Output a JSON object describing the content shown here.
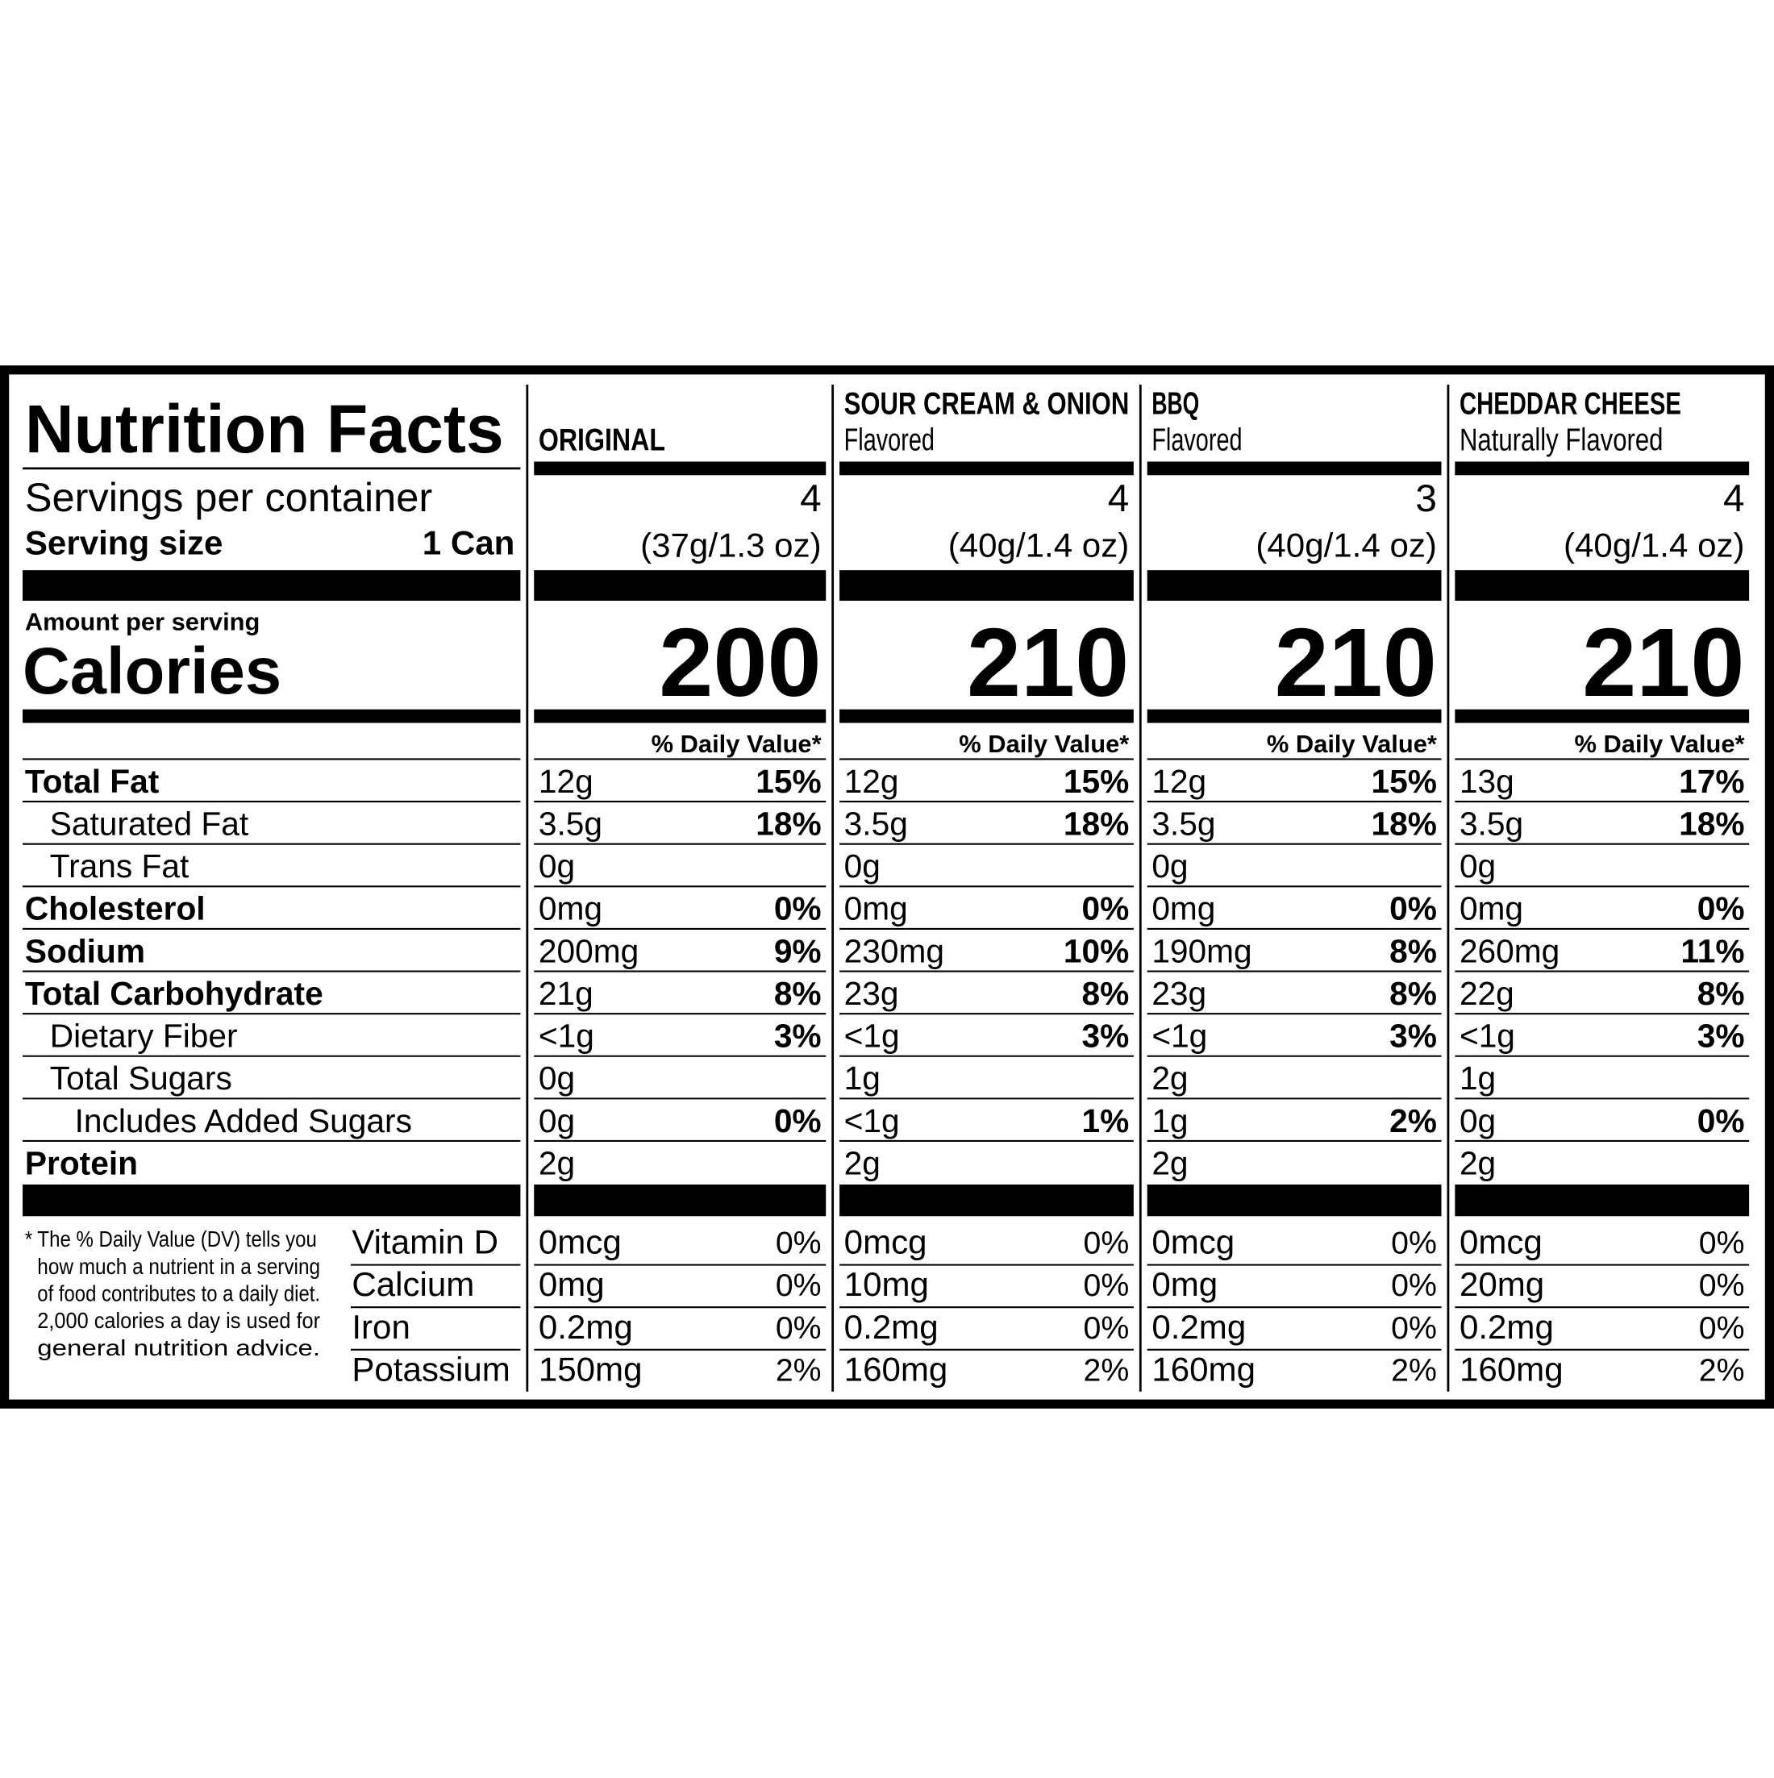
{
  "title": "Nutrition Facts",
  "servings_label": "Servings per container",
  "serving_size_label": "Serving size",
  "serving_size_value": "1 Can",
  "amount_label": "Amount per serving",
  "calories_label": "Calories",
  "dv_header": "% Daily Value*",
  "nutrients": [
    {
      "label": "Total Fat",
      "bold": true,
      "indent": 0
    },
    {
      "label": "Saturated Fat",
      "bold": false,
      "indent": 1
    },
    {
      "label": "Trans Fat",
      "bold": false,
      "indent": 1
    },
    {
      "label": "Cholesterol",
      "bold": true,
      "indent": 0
    },
    {
      "label": "Sodium",
      "bold": true,
      "indent": 0
    },
    {
      "label": "Total Carbohydrate",
      "bold": true,
      "indent": 0
    },
    {
      "label": "Dietary Fiber",
      "bold": false,
      "indent": 1
    },
    {
      "label": "Total Sugars",
      "bold": false,
      "indent": 1
    },
    {
      "label": "Includes Added Sugars",
      "bold": false,
      "indent": 2
    },
    {
      "label": "Protein",
      "bold": true,
      "indent": 0
    }
  ],
  "vitamins": [
    "Vitamin D",
    "Calcium",
    "Iron",
    "Potassium"
  ],
  "footnote": [
    "* The % Daily Value (DV) tells you",
    "how much a nutrient in a serving",
    "of food contributes to a daily diet.",
    "2,000 calories a day is used for",
    "general nutrition advice."
  ],
  "products": [
    {
      "name": "ORIGINAL",
      "servings": 4,
      "serving_size": "(37g/1.3 oz)",
      "calories": 200,
      "nutrients": [
        {
          "amount": "12g",
          "dv": "15%"
        },
        {
          "amount": "3.5g",
          "dv": "18%"
        },
        {
          "amount": "0g"
        },
        {
          "amount": "0mg",
          "dv": "0%"
        },
        {
          "amount": "200mg",
          "dv": "9%"
        },
        {
          "amount": "21g",
          "dv": "8%"
        },
        {
          "amount": "<1g",
          "dv": "3%"
        },
        {
          "amount": "0g"
        },
        {
          "amount": "0g",
          "dv": "0%"
        },
        {
          "amount": "2g"
        }
      ],
      "vitamins": [
        {
          "amount": "0mcg",
          "dv": "0%"
        },
        {
          "amount": "0mg",
          "dv": "0%"
        },
        {
          "amount": "0.2mg",
          "dv": "0%"
        },
        {
          "amount": "150mg",
          "dv": "2%"
        }
      ]
    },
    {
      "name": "SOUR CREAM & ONION",
      "subtitle": "Flavored",
      "servings": 4,
      "serving_size": "(40g/1.4 oz)",
      "calories": 210,
      "nutrients": [
        {
          "amount": "12g",
          "dv": "15%"
        },
        {
          "amount": "3.5g",
          "dv": "18%"
        },
        {
          "amount": "0g"
        },
        {
          "amount": "0mg",
          "dv": "0%"
        },
        {
          "amount": "230mg",
          "dv": "10%"
        },
        {
          "amount": "23g",
          "dv": "8%"
        },
        {
          "amount": "<1g",
          "dv": "3%"
        },
        {
          "amount": "1g"
        },
        {
          "amount": "<1g",
          "dv": "1%"
        },
        {
          "amount": "2g"
        }
      ],
      "vitamins": [
        {
          "amount": "0mcg",
          "dv": "0%"
        },
        {
          "amount": "10mg",
          "dv": "0%"
        },
        {
          "amount": "0.2mg",
          "dv": "0%"
        },
        {
          "amount": "160mg",
          "dv": "2%"
        }
      ]
    },
    {
      "name": "BBQ",
      "subtitle": "Flavored",
      "servings": 3,
      "serving_size": "(40g/1.4 oz)",
      "calories": 210,
      "nutrients": [
        {
          "amount": "12g",
          "dv": "15%"
        },
        {
          "amount": "3.5g",
          "dv": "18%"
        },
        {
          "amount": "0g"
        },
        {
          "amount": "0mg",
          "dv": "0%"
        },
        {
          "amount": "190mg",
          "dv": "8%"
        },
        {
          "amount": "23g",
          "dv": "8%"
        },
        {
          "amount": "<1g",
          "dv": "3%"
        },
        {
          "amount": "2g"
        },
        {
          "amount": "1g",
          "dv": "2%"
        },
        {
          "amount": "2g"
        }
      ],
      "vitamins": [
        {
          "amount": "0mcg",
          "dv": "0%"
        },
        {
          "amount": "0mg",
          "dv": "0%"
        },
        {
          "amount": "0.2mg",
          "dv": "0%"
        },
        {
          "amount": "160mg",
          "dv": "2%"
        }
      ]
    },
    {
      "name": "CHEDDAR CHEESE",
      "subtitle": "Naturally Flavored",
      "servings": 4,
      "serving_size": "(40g/1.4 oz)",
      "calories": 210,
      "nutrients": [
        {
          "amount": "13g",
          "dv": "17%"
        },
        {
          "amount": "3.5g",
          "dv": "18%"
        },
        {
          "amount": "0g"
        },
        {
          "amount": "0mg",
          "dv": "0%"
        },
        {
          "amount": "260mg",
          "dv": "11%"
        },
        {
          "amount": "22g",
          "dv": "8%"
        },
        {
          "amount": "<1g",
          "dv": "3%"
        },
        {
          "amount": "1g"
        },
        {
          "amount": "0g",
          "dv": "0%"
        },
        {
          "amount": "2g"
        }
      ],
      "vitamins": [
        {
          "amount": "0mcg",
          "dv": "0%"
        },
        {
          "amount": "20mg",
          "dv": "0%"
        },
        {
          "amount": "0.2mg",
          "dv": "0%"
        },
        {
          "amount": "160mg",
          "dv": "2%"
        }
      ]
    }
  ]
}
